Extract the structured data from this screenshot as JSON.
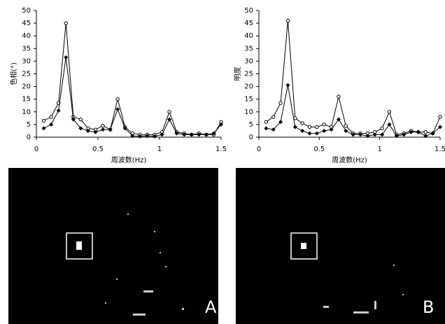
{
  "chart_data": [
    {
      "type": "line",
      "y_label": "色相(°)",
      "x_label": "周波数(Hz)",
      "x": [
        0.06,
        0.12,
        0.18,
        0.24,
        0.3,
        0.36,
        0.42,
        0.48,
        0.54,
        0.6,
        0.66,
        0.72,
        0.78,
        0.84,
        0.9,
        0.96,
        1.02,
        1.08,
        1.14,
        1.2,
        1.26,
        1.32,
        1.38,
        1.44,
        1.5
      ],
      "series": [
        {
          "color": "#000000",
          "marker": "circle-open",
          "values": [
            6.5,
            8,
            13.5,
            45,
            8,
            7,
            3.5,
            3,
            4.5,
            3,
            15,
            4,
            1.5,
            1,
            1,
            1,
            2,
            10,
            2,
            1.5,
            1,
            1.5,
            1,
            1,
            6
          ]
        },
        {
          "color": "#000000",
          "marker": "diamond-filled",
          "values": [
            3.5,
            5,
            10.5,
            31.5,
            7,
            3.5,
            2.5,
            2,
            3,
            3,
            11,
            3.5,
            0.5,
            0.3,
            0.5,
            0.3,
            1,
            7,
            1.5,
            1,
            1,
            1,
            1,
            1.5,
            5
          ]
        }
      ],
      "xlim": [
        0,
        1.5
      ],
      "xticks": [
        0,
        0.5,
        1,
        1.5
      ],
      "ylim": [
        0,
        50
      ],
      "yticks": [
        0,
        5,
        10,
        15,
        20,
        25,
        30,
        35,
        40,
        45,
        50
      ]
    },
    {
      "type": "line",
      "y_label": "明度",
      "x_label": "周波数(Hz)",
      "x": [
        0.06,
        0.12,
        0.18,
        0.24,
        0.3,
        0.36,
        0.42,
        0.48,
        0.54,
        0.6,
        0.66,
        0.72,
        0.78,
        0.84,
        0.9,
        0.96,
        1.02,
        1.08,
        1.14,
        1.2,
        1.26,
        1.32,
        1.38,
        1.44,
        1.5
      ],
      "series": [
        {
          "color": "#000000",
          "marker": "circle-open",
          "values": [
            6,
            8,
            13.5,
            46,
            7.5,
            5.5,
            4,
            4,
            5,
            4,
            16,
            4.5,
            1.5,
            1.5,
            1.5,
            2,
            3.5,
            10,
            1,
            1.5,
            2.5,
            2,
            2,
            1.5,
            8
          ]
        },
        {
          "color": "#000000",
          "marker": "diamond-filled",
          "values": [
            3.5,
            3,
            6,
            20.5,
            4,
            2.5,
            1.5,
            1.5,
            2.5,
            3,
            7,
            2.5,
            1,
            1,
            0.5,
            1,
            1,
            5,
            0.5,
            1,
            2,
            2,
            0.5,
            1.5,
            4
          ]
        }
      ],
      "xlim": [
        0,
        1.5
      ],
      "xticks": [
        0,
        0.5,
        1,
        1.5
      ],
      "ylim": [
        0,
        50
      ],
      "yticks": [
        0,
        5,
        10,
        15,
        20,
        25,
        30,
        35,
        40,
        45,
        50
      ]
    }
  ],
  "panels": [
    {
      "label": "A"
    },
    {
      "label": "B"
    }
  ]
}
